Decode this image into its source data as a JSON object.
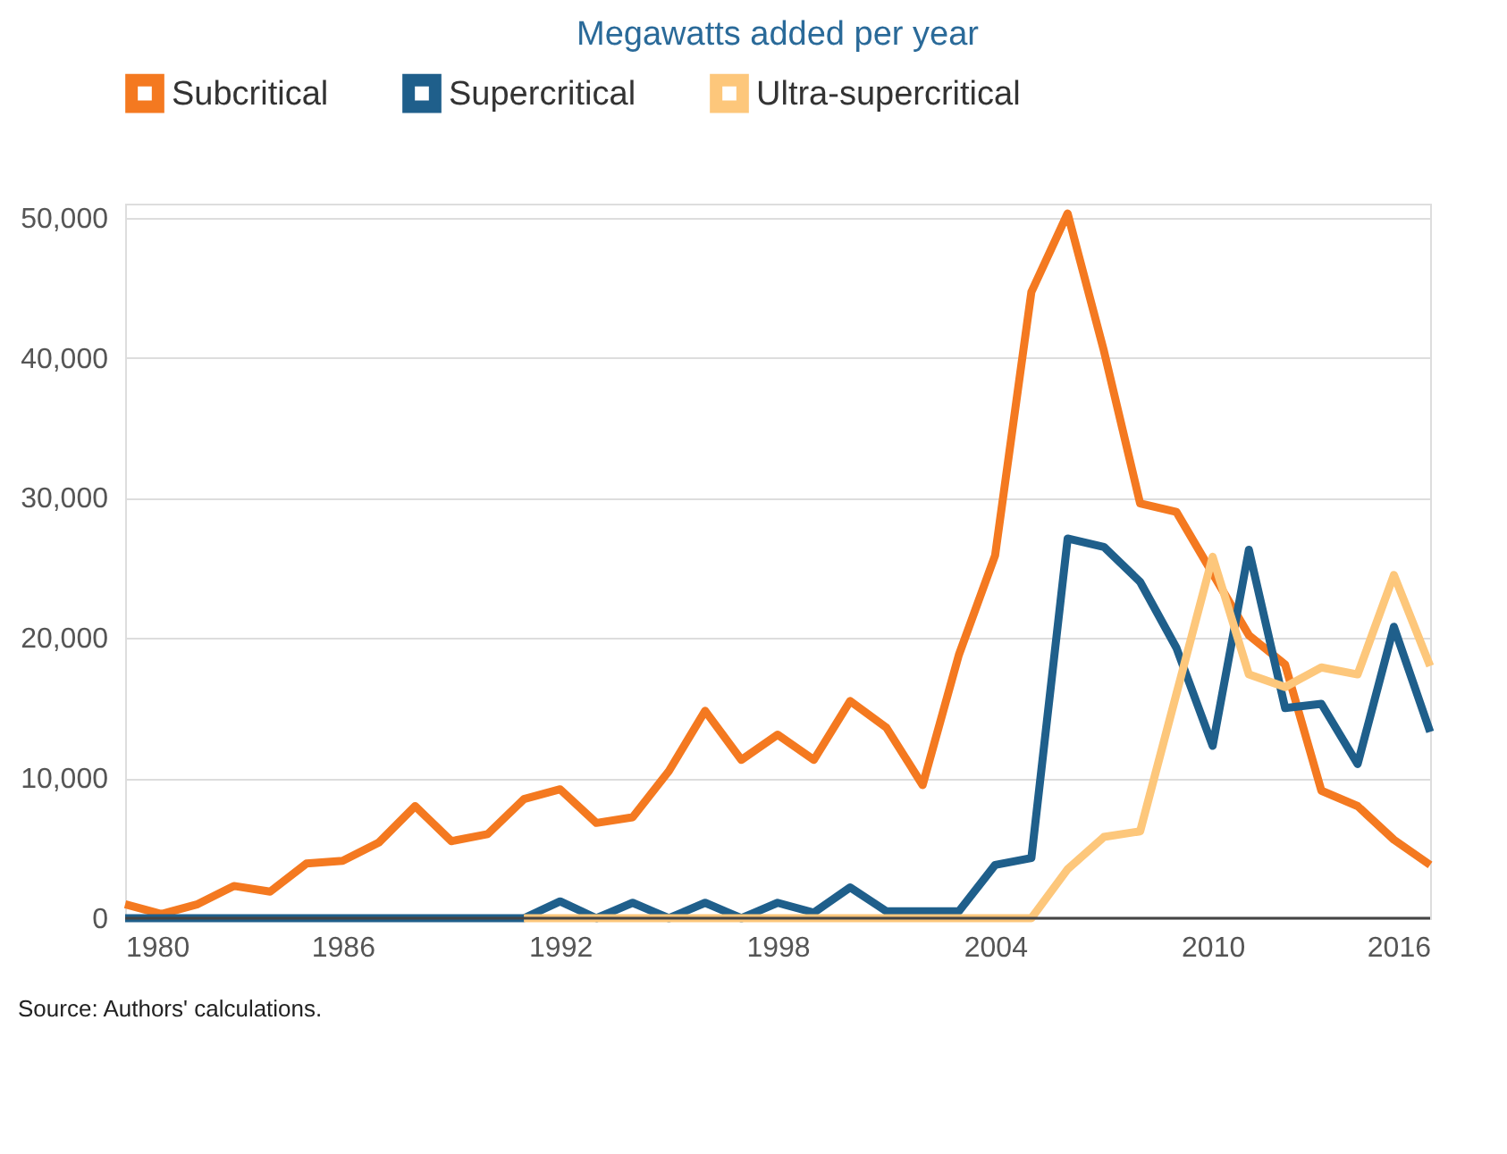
{
  "chart_data": {
    "type": "line",
    "title": "Megawatts added per year",
    "x": [
      1980,
      1981,
      1982,
      1983,
      1984,
      1985,
      1986,
      1987,
      1988,
      1989,
      1990,
      1991,
      1992,
      1993,
      1994,
      1995,
      1996,
      1997,
      1998,
      1999,
      2000,
      2001,
      2002,
      2003,
      2004,
      2005,
      2006,
      2007,
      2008,
      2009,
      2010,
      2011,
      2012,
      2013,
      2014,
      2015,
      2016
    ],
    "series": [
      {
        "name": "Subcritical",
        "color": "#f47920",
        "values": [
          1000,
          300,
          1000,
          2300,
          1900,
          3900,
          4100,
          5400,
          8000,
          5500,
          6000,
          8500,
          9200,
          6800,
          7200,
          10500,
          14800,
          11300,
          13100,
          11300,
          15500,
          13600,
          9500,
          18800,
          25900,
          44700,
          50300,
          40500,
          29600,
          29000,
          24600,
          20200,
          18100,
          9100,
          8000,
          5600,
          3800
        ]
      },
      {
        "name": "Supercritical",
        "color": "#1f5f8b",
        "values": [
          0,
          0,
          0,
          0,
          0,
          0,
          0,
          0,
          0,
          0,
          0,
          0,
          1200,
          0,
          1100,
          0,
          1100,
          0,
          1100,
          400,
          2200,
          500,
          500,
          500,
          3800,
          4300,
          27100,
          26500,
          24000,
          19300,
          12300,
          26300,
          15000,
          15300,
          11000,
          20800,
          13300
        ]
      },
      {
        "name": "Ultra-supercritical",
        "color": "#fdc77b",
        "x": [
          1991,
          1992,
          1993,
          1994,
          1995,
          1996,
          1997,
          1998,
          1999,
          2000,
          2001,
          2002,
          2003,
          2004,
          2005,
          2006,
          2007,
          2008,
          2009,
          2010,
          2011,
          2012,
          2013,
          2014,
          2015,
          2016
        ],
        "values": [
          0,
          0,
          0,
          0,
          0,
          0,
          0,
          0,
          0,
          0,
          0,
          0,
          0,
          0,
          0,
          3500,
          5800,
          6200,
          16000,
          25800,
          17400,
          16500,
          17900,
          17400,
          24500,
          18000
        ]
      }
    ],
    "xlim": [
      1980,
      2016
    ],
    "xticks": [
      1980,
      1986,
      1992,
      1998,
      2004,
      2010,
      2016
    ],
    "ylim": [
      0,
      51000
    ],
    "yticks": [
      0,
      {
        "value": 10000,
        "label": "10,000"
      },
      {
        "value": 20000,
        "label": "20,000"
      },
      {
        "value": 30000,
        "label": "30,000"
      },
      {
        "value": 40000,
        "label": "40,000"
      },
      {
        "value": 50000,
        "label": "50,000"
      }
    ],
    "grid": "y",
    "legend": "top",
    "marker": "none",
    "line_style": "solid",
    "annotations": [
      "Source: Authors' calculations."
    ]
  }
}
